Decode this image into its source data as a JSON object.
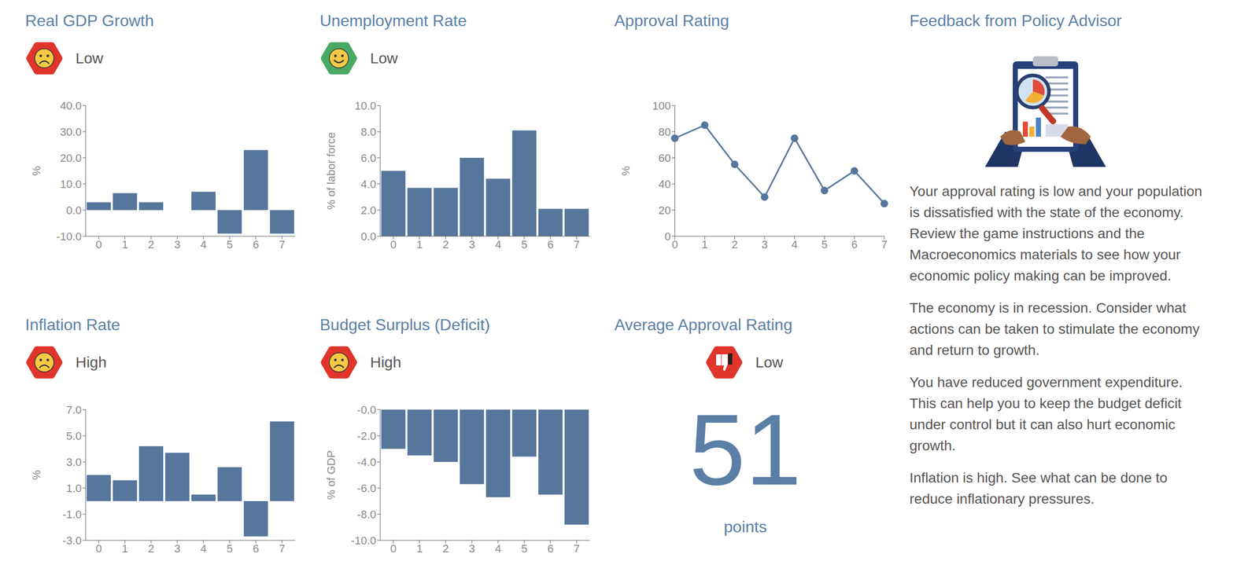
{
  "chart_data": [
    {
      "type": "bar",
      "title": "Real GDP Growth",
      "subtitle": "Low",
      "y_label": "%",
      "categories": [
        "0",
        "1",
        "2",
        "3",
        "4",
        "5",
        "6",
        "7"
      ],
      "values": [
        3.0,
        6.5,
        3.0,
        0.0,
        7.0,
        -9.0,
        23.0,
        -9.0
      ],
      "color": "#56769c",
      "ylim": [
        -10,
        40
      ],
      "yticks": [
        {
          "value": -10,
          "label": "-10.0"
        },
        {
          "value": 0,
          "label": "0.0"
        },
        {
          "value": 10,
          "label": "10.0"
        },
        {
          "value": 20,
          "label": "20.0"
        },
        {
          "value": 30,
          "label": "30.0"
        },
        {
          "value": 40,
          "label": "40.0"
        }
      ],
      "grid": false
    },
    {
      "type": "bar",
      "title": "Unemployment Rate",
      "subtitle": "Low",
      "y_label": "% of labor force",
      "categories": [
        "0",
        "1",
        "2",
        "3",
        "4",
        "5",
        "6",
        "7"
      ],
      "values": [
        5.0,
        3.7,
        3.7,
        6.0,
        4.4,
        8.1,
        2.1,
        2.1
      ],
      "color": "#56769c",
      "ylim": [
        0,
        10
      ],
      "yticks": [
        {
          "value": 0,
          "label": "0.0"
        },
        {
          "value": 2,
          "label": "2.0"
        },
        {
          "value": 4,
          "label": "4.0"
        },
        {
          "value": 6,
          "label": "6.0"
        },
        {
          "value": 8,
          "label": "8.0"
        },
        {
          "value": 10,
          "label": "10.0"
        }
      ],
      "grid": false
    },
    {
      "type": "line",
      "title": "Approval Rating",
      "y_label": "%",
      "x": [
        0,
        1,
        2,
        3,
        4,
        5,
        6,
        7
      ],
      "values": [
        75,
        85,
        55,
        30,
        75,
        35,
        50,
        25
      ],
      "color": "#56769c",
      "marker": "circle",
      "xlim": [
        0,
        7
      ],
      "xticks": [
        0,
        1,
        2,
        3,
        4,
        5,
        6,
        7
      ],
      "ylim": [
        0,
        100
      ],
      "yticks": [
        0,
        20,
        40,
        60,
        80,
        100
      ],
      "grid": false
    },
    {
      "type": "bar",
      "title": "Inflation Rate",
      "subtitle": "High",
      "y_label": "%",
      "categories": [
        "0",
        "1",
        "2",
        "3",
        "4",
        "5",
        "6",
        "7"
      ],
      "values": [
        2.0,
        1.6,
        4.2,
        3.7,
        0.5,
        2.6,
        -2.7,
        6.1
      ],
      "color": "#56769c",
      "ylim": [
        -3,
        7
      ],
      "yticks": [
        {
          "value": -3,
          "label": "-3.0"
        },
        {
          "value": -1,
          "label": "-1.0"
        },
        {
          "value": 1,
          "label": "1.0"
        },
        {
          "value": 3,
          "label": "3.0"
        },
        {
          "value": 5,
          "label": "5.0"
        },
        {
          "value": 7,
          "label": "7.0"
        }
      ],
      "grid": false
    },
    {
      "type": "bar",
      "title": "Budget Surplus (Deficit)",
      "subtitle": "High",
      "y_label": "% of GDP",
      "categories": [
        "0",
        "1",
        "2",
        "3",
        "4",
        "5",
        "6",
        "7"
      ],
      "values": [
        -3.0,
        -3.5,
        -4.0,
        -5.7,
        -6.7,
        -3.6,
        -6.5,
        -8.8
      ],
      "color": "#56769c",
      "ylim": [
        -10,
        0
      ],
      "yticks": [
        {
          "value": 0,
          "label": "-0.0"
        },
        {
          "value": -2,
          "label": "-2.0"
        },
        {
          "value": -4,
          "label": "-4.0"
        },
        {
          "value": -6,
          "label": "-6.0"
        },
        {
          "value": -8,
          "label": "-8.0"
        },
        {
          "value": -10,
          "label": "-10.0"
        }
      ],
      "grid": false
    }
  ],
  "average_approval": {
    "title": "Average Approval Rating",
    "status": "Low",
    "value": 51,
    "unit": "points"
  },
  "feedback": {
    "title": "Feedback from Policy Advisor",
    "paragraphs": [
      "Your approval rating is low and your population is dissatisfied with the state of the economy. Review the game instructions and the Macroeconomics materials to see how your economic policy making can be improved.",
      "The economy is in recession. Consider what actions can be taken to stimulate the economy and return to growth.",
      "You have reduced government expenditure. This can help you to keep the budget deficit under control but it can also hurt economic growth.",
      "Inflation is high. See what can be done to reduce inflationary pressures."
    ]
  }
}
